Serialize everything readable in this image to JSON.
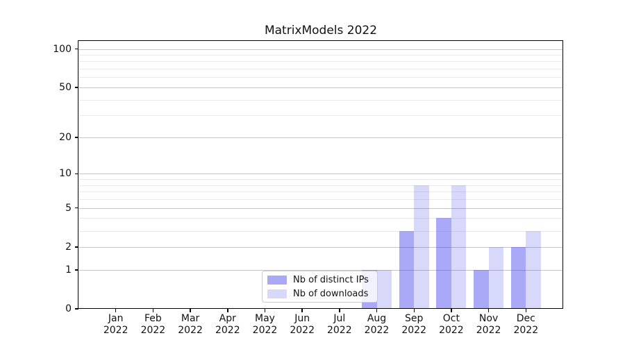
{
  "chart_data": {
    "type": "bar",
    "title": "MatrixModels 2022",
    "yscale": "log1p",
    "grid": "both",
    "legend_position": "lower center",
    "ylim": [
      0,
      100
    ],
    "yticks": [
      0,
      1,
      2,
      5,
      10,
      20,
      50,
      100
    ],
    "yticks_minor": [
      3,
      4,
      6,
      7,
      8,
      9,
      30,
      40,
      60,
      70,
      80,
      90
    ],
    "categories": [
      {
        "month": "Jan",
        "year": "2022"
      },
      {
        "month": "Feb",
        "year": "2022"
      },
      {
        "month": "Mar",
        "year": "2022"
      },
      {
        "month": "Apr",
        "year": "2022"
      },
      {
        "month": "May",
        "year": "2022"
      },
      {
        "month": "Jun",
        "year": "2022"
      },
      {
        "month": "Jul",
        "year": "2022"
      },
      {
        "month": "Aug",
        "year": "2022"
      },
      {
        "month": "Sep",
        "year": "2022"
      },
      {
        "month": "Oct",
        "year": "2022"
      },
      {
        "month": "Nov",
        "year": "2022"
      },
      {
        "month": "Dec",
        "year": "2022"
      }
    ],
    "series": [
      {
        "name": "Nb of distinct IPs",
        "color": "rgba(40,40,235,0.40)",
        "values": [
          0,
          0,
          0,
          0,
          0,
          0,
          0,
          1,
          3,
          4,
          1,
          2
        ]
      },
      {
        "name": "Nb of downloads",
        "color": "rgba(40,40,235,0.18)",
        "values": [
          0,
          0,
          0,
          0,
          0,
          0,
          0,
          1,
          8,
          8,
          2,
          3
        ]
      }
    ],
    "colors": {
      "major_grid": "#c6c6c6",
      "minor_grid": "#ebebeb",
      "axis": "#000000",
      "text": "#111111"
    }
  }
}
